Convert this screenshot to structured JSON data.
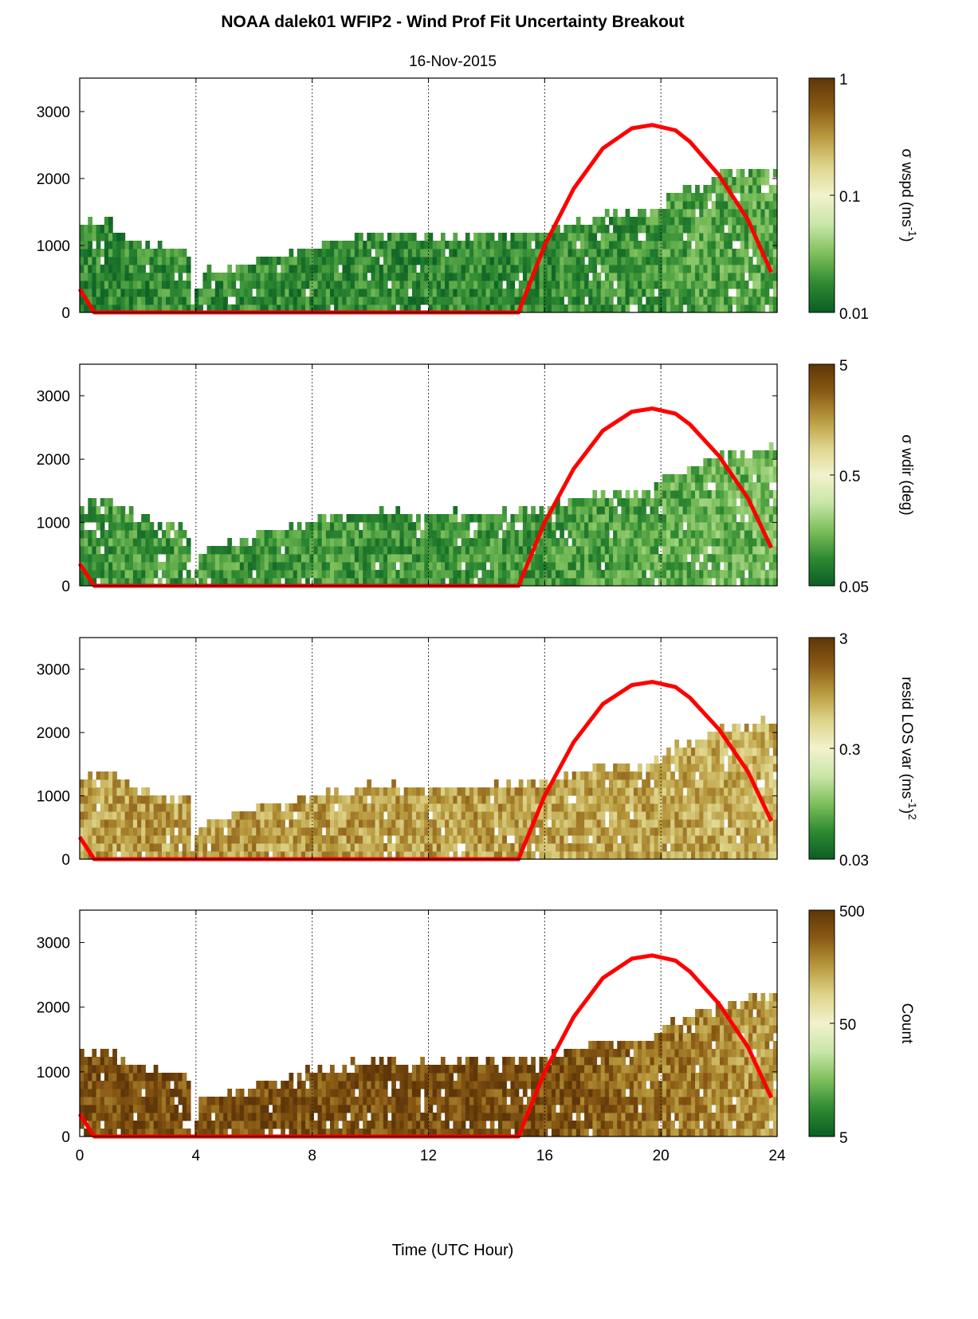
{
  "figure": {
    "title": "NOAA dalek01 WFIP2 - Wind Prof Fit Uncertainty Breakout",
    "subtitle": "16-Nov-2015",
    "xlabel": "Time (UTC Hour)"
  },
  "colors": {
    "sun_curve": "#ff0000",
    "colormap": [
      "#0b5e24",
      "#2f8a32",
      "#7dbf5b",
      "#c9e6a8",
      "#f2f2cc",
      "#ded48a",
      "#b89a3e",
      "#8a5a14",
      "#5e3608"
    ]
  },
  "chart_data": [
    {
      "type": "heatmap",
      "colorbar_label": "σ wspd (ms",
      "colorbar_label_sup": "-1",
      "colorbar_label_end": ")",
      "colorbar_scale": "log",
      "colorbar_ticks": [
        "0.01",
        "0.1",
        "1"
      ],
      "xlim": [
        0,
        24
      ],
      "ylim": [
        0,
        3500
      ],
      "xticks": [
        "0",
        "4",
        "8",
        "12",
        "16",
        "20",
        "24"
      ],
      "yticks": [
        "0",
        "1000",
        "2000",
        "3000"
      ],
      "grid": "vertical dotted",
      "sun_curve": {
        "x": [
          0,
          0.5,
          15.1,
          16,
          17,
          18,
          19,
          19.7,
          20.5,
          21,
          22,
          23,
          23.8
        ],
        "y": [
          350,
          0,
          0,
          1000,
          1850,
          2450,
          2750,
          2800,
          2720,
          2550,
          2050,
          1380,
          600
        ]
      }
    },
    {
      "type": "heatmap",
      "colorbar_label": "σ wdir (deg)",
      "colorbar_scale": "log",
      "colorbar_ticks": [
        "0.05",
        "0.5",
        "5"
      ],
      "xlim": [
        0,
        24
      ],
      "ylim": [
        0,
        3500
      ],
      "xticks": [
        "0",
        "4",
        "8",
        "12",
        "16",
        "20",
        "24"
      ],
      "yticks": [
        "0",
        "1000",
        "2000",
        "3000"
      ],
      "grid": "vertical dotted",
      "sun_curve": {
        "x": [
          0,
          0.5,
          15.1,
          16,
          17,
          18,
          19,
          19.7,
          20.5,
          21,
          22,
          23,
          23.8
        ],
        "y": [
          350,
          0,
          0,
          1000,
          1850,
          2450,
          2750,
          2800,
          2720,
          2550,
          2050,
          1380,
          600
        ]
      }
    },
    {
      "type": "heatmap",
      "colorbar_label": "resid LOS var (ms",
      "colorbar_label_sup": "-1",
      "colorbar_label_end": ")",
      "colorbar_label_sup2": "2",
      "colorbar_scale": "log",
      "colorbar_ticks": [
        "0.03",
        "0.3",
        "3"
      ],
      "xlim": [
        0,
        24
      ],
      "ylim": [
        0,
        3500
      ],
      "xticks": [
        "0",
        "4",
        "8",
        "12",
        "16",
        "20",
        "24"
      ],
      "yticks": [
        "0",
        "1000",
        "2000",
        "3000"
      ],
      "grid": "vertical dotted",
      "sun_curve": {
        "x": [
          0,
          0.5,
          15.1,
          16,
          17,
          18,
          19,
          19.7,
          20.5,
          21,
          22,
          23,
          23.8
        ],
        "y": [
          350,
          0,
          0,
          1000,
          1850,
          2450,
          2750,
          2800,
          2720,
          2550,
          2050,
          1380,
          600
        ]
      }
    },
    {
      "type": "heatmap",
      "colorbar_label": "Count",
      "colorbar_scale": "log",
      "colorbar_ticks": [
        "5",
        "50",
        "500"
      ],
      "xlim": [
        0,
        24
      ],
      "ylim": [
        0,
        3500
      ],
      "xticks": [
        "0",
        "4",
        "8",
        "12",
        "16",
        "20",
        "24"
      ],
      "yticks": [
        "0",
        "1000",
        "2000",
        "3000"
      ],
      "grid": "vertical dotted",
      "sun_curve": {
        "x": [
          0,
          0.5,
          15.1,
          16,
          17,
          18,
          19,
          19.7,
          20.5,
          21,
          22,
          23,
          23.8
        ],
        "y": [
          350,
          0,
          0,
          1000,
          1850,
          2450,
          2750,
          2800,
          2720,
          2550,
          2050,
          1380,
          600
        ]
      }
    }
  ]
}
